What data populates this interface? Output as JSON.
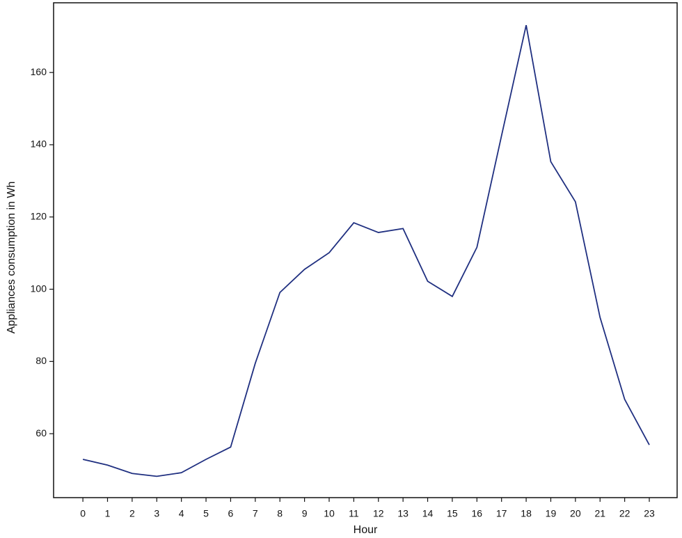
{
  "chart_data": {
    "type": "line",
    "x_label": "Hour",
    "y_label": "Appliances consumption in Wh",
    "x": [
      0,
      1,
      2,
      3,
      4,
      5,
      6,
      7,
      8,
      9,
      10,
      11,
      12,
      13,
      14,
      15,
      16,
      17,
      18,
      19,
      20,
      21,
      22,
      23
    ],
    "series": [
      {
        "color": "#1f2f80",
        "values": [
          52.9,
          51.3,
          49.0,
          48.2,
          49.2,
          52.9,
          56.3,
          79.5,
          99.1,
          105.5,
          110.1,
          118.4,
          115.7,
          116.8,
          102.2,
          98.0,
          111.6,
          142.5,
          173.1,
          135.3,
          124.2,
          92.2,
          69.5,
          56.9
        ]
      }
    ],
    "xlim": [
      -1.19,
      24.13
    ],
    "ylim": [
      42.3,
      179.3
    ],
    "xticks": [
      0,
      1,
      2,
      3,
      4,
      5,
      6,
      7,
      8,
      9,
      10,
      11,
      12,
      13,
      14,
      15,
      16,
      17,
      18,
      19,
      20,
      21,
      22,
      23
    ],
    "yticks": [
      60,
      80,
      100,
      120,
      140,
      160
    ],
    "grid": false
  }
}
